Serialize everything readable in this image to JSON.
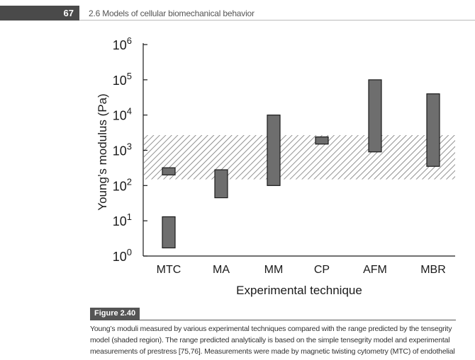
{
  "header": {
    "page_number": "67",
    "running_title": "2.6 Models of cellular biomechanical behavior"
  },
  "chart_data": {
    "type": "bar",
    "subtype": "floating-range (log scale)",
    "xlabel": "Experimental technique",
    "ylabel": "Young’s modulus (Pa)",
    "y_scale": "log10",
    "ylim": [
      1,
      1000000
    ],
    "y_ticks": [
      {
        "base": "10",
        "exp": "0"
      },
      {
        "base": "10",
        "exp": "1"
      },
      {
        "base": "10",
        "exp": "2"
      },
      {
        "base": "10",
        "exp": "3"
      },
      {
        "base": "10",
        "exp": "4"
      },
      {
        "base": "10",
        "exp": "5"
      },
      {
        "base": "10",
        "exp": "6"
      }
    ],
    "categories": [
      "MTC",
      "MA",
      "MM",
      "CP",
      "AFM",
      "MBR"
    ],
    "ranges": [
      {
        "category": "MTC",
        "low": 200,
        "high": 320
      },
      {
        "category": "MTC",
        "low": 1.7,
        "high": 13
      },
      {
        "category": "MA",
        "low": 45,
        "high": 280
      },
      {
        "category": "MM",
        "low": 100,
        "high": 10000
      },
      {
        "category": "CP",
        "low": 1500,
        "high": 2400
      },
      {
        "category": "AFM",
        "low": 900,
        "high": 100000
      },
      {
        "category": "MBR",
        "low": 350,
        "high": 40000
      }
    ],
    "shaded_region": {
      "low": 150,
      "high": 2700
    },
    "colors": {
      "bar_fill": "#6e6e6e",
      "bar_stroke": "#1a1a1a",
      "hatch": "#777777"
    }
  },
  "figure": {
    "label": "Figure 2.40",
    "caption_lines": [
      "Young’s moduli measured by various experimental techniques compared with the range predicted by the tensegrity",
      "model (shaded region). The range predicted analytically is based on the simple tensegrity model and experimental",
      "measurements of prestress [75,76]. Measurements were made by magnetic twisting cytometry (MTC) of endothelial"
    ]
  }
}
